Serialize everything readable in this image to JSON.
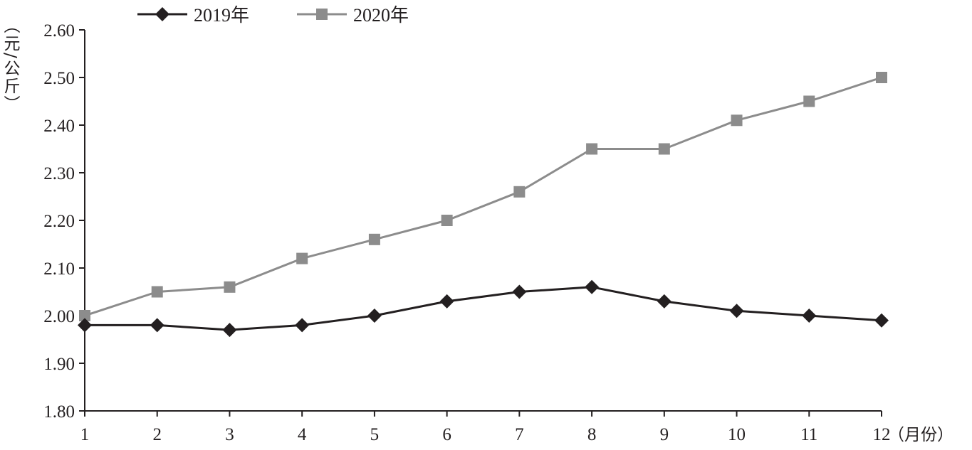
{
  "chart_data": {
    "type": "line",
    "x": [
      "1",
      "2",
      "3",
      "4",
      "5",
      "6",
      "7",
      "8",
      "9",
      "10",
      "11",
      "12"
    ],
    "series": [
      {
        "name": "2019年",
        "marker": "diamond",
        "color": "#231f20",
        "values": [
          1.98,
          1.98,
          1.97,
          1.98,
          2.0,
          2.03,
          2.05,
          2.06,
          2.03,
          2.01,
          2.0,
          1.99
        ]
      },
      {
        "name": "2020年",
        "marker": "square",
        "color": "#8c8c8c",
        "values": [
          2.0,
          2.05,
          2.06,
          2.12,
          2.16,
          2.2,
          2.26,
          2.35,
          2.35,
          2.41,
          2.45,
          2.5
        ]
      }
    ],
    "y_ticks": [
      "1.80",
      "1.90",
      "2.00",
      "2.10",
      "2.20",
      "2.30",
      "2.40",
      "2.50",
      "2.60"
    ],
    "ylim": [
      1.8,
      2.6
    ],
    "ylabel": "（元/公斤）",
    "xlabel": "（月份）",
    "grid": false,
    "legend_position": "top-left"
  }
}
